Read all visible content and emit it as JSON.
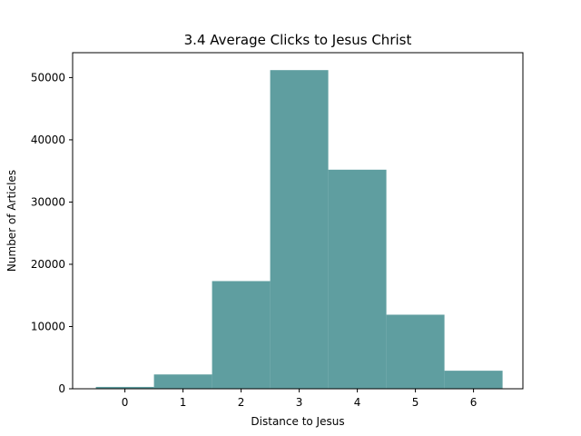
{
  "chart_data": {
    "type": "bar",
    "title": "3.4 Average Clicks to Jesus Christ",
    "xlabel": "Distance to Jesus",
    "ylabel": "Number of Articles",
    "categories": [
      "0",
      "1",
      "2",
      "3",
      "4",
      "5",
      "6"
    ],
    "x": [
      0,
      1,
      2,
      3,
      4,
      5,
      6
    ],
    "values": [
      300,
      2300,
      17300,
      51200,
      35200,
      11900,
      2900
    ],
    "bar_width": 1.0,
    "xlim": [
      -0.9,
      6.85
    ],
    "ylim": [
      0,
      54000
    ],
    "yticks": [
      0,
      10000,
      20000,
      30000,
      40000,
      50000
    ],
    "xticks": [
      0,
      1,
      2,
      3,
      4,
      5,
      6
    ],
    "bar_color": "#5f9ea0",
    "grid": false,
    "legend": "none"
  }
}
